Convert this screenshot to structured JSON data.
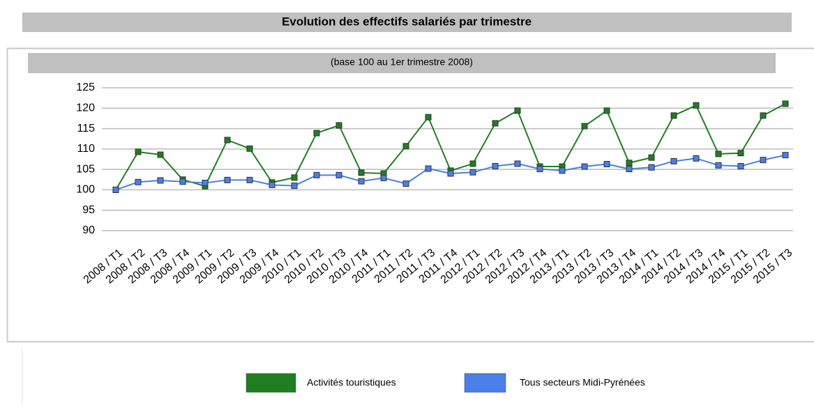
{
  "chart_data": {
    "type": "line",
    "title": "Evolution des effectifs salariés par trimestre",
    "subtitle": "(base 100 au 1er trimestre 2008)",
    "categories": [
      "2008 / T1",
      "2008 / T2",
      "2008 / T3",
      "2008 / T4",
      "2009 / T1",
      "2009 / T2",
      "2009 / T3",
      "2009 / T4",
      "2010 / T1",
      "2010 / T2",
      "2010 / T3",
      "2010 / T4",
      "2011 / T1",
      "2011 / T2",
      "2011 / T3",
      "2011 / T4",
      "2012 / T1",
      "2012 / T2",
      "2012 / T3",
      "2012 / T4",
      "2013 / T1",
      "2013 / T2",
      "2013 / T3",
      "2013 / T4",
      "2014 / T1",
      "2014 / T2",
      "2014 / T3",
      "2014 / T4",
      "2015 / T1",
      "2015 / T2",
      "2015 / T3"
    ],
    "series": [
      {
        "name": "Activités touristiques",
        "color": "#1f7f1f",
        "values": [
          100,
          109.3,
          108.6,
          102.5,
          100.9,
          112.2,
          110.1,
          101.8,
          103,
          113.9,
          115.8,
          104.2,
          104,
          110.7,
          117.8,
          104.7,
          106.4,
          116.3,
          119.4,
          105.7,
          105.7,
          115.6,
          119.4,
          106.6,
          107.9,
          118.2,
          120.7,
          108.8,
          109,
          118.2,
          121.1
        ]
      },
      {
        "name": "Tous secteurs Midi-Pyrénées",
        "color": "#4a7ee8",
        "values": [
          100,
          101.9,
          102.3,
          102,
          101.7,
          102.4,
          102.4,
          101.2,
          101,
          103.6,
          103.6,
          102.1,
          102.9,
          101.5,
          105.2,
          104,
          104.3,
          105.8,
          106.4,
          105.1,
          104.7,
          105.7,
          106.3,
          105.1,
          105.5,
          107,
          107.7,
          106,
          105.8,
          107.3,
          108.5
        ]
      }
    ],
    "ylim": [
      90,
      125
    ],
    "yticks": [
      90,
      95,
      100,
      105,
      110,
      115,
      120,
      125
    ],
    "grid": true,
    "legend": "bottom"
  }
}
